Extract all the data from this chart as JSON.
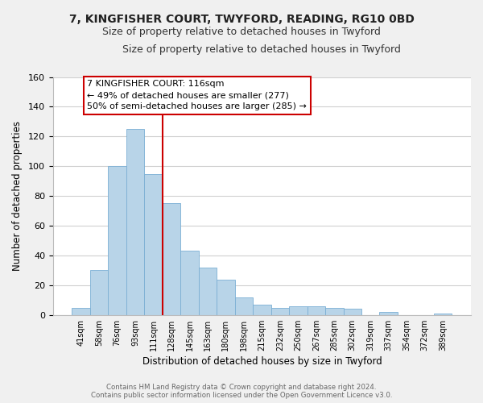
{
  "title_line1": "7, KINGFISHER COURT, TWYFORD, READING, RG10 0BD",
  "title_line2": "Size of property relative to detached houses in Twyford",
  "xlabel": "Distribution of detached houses by size in Twyford",
  "ylabel": "Number of detached properties",
  "bar_labels": [
    "41sqm",
    "58sqm",
    "76sqm",
    "93sqm",
    "111sqm",
    "128sqm",
    "145sqm",
    "163sqm",
    "180sqm",
    "198sqm",
    "215sqm",
    "232sqm",
    "250sqm",
    "267sqm",
    "285sqm",
    "302sqm",
    "319sqm",
    "337sqm",
    "354sqm",
    "372sqm",
    "389sqm"
  ],
  "bar_values": [
    5,
    30,
    100,
    125,
    95,
    75,
    43,
    32,
    24,
    12,
    7,
    5,
    6,
    6,
    5,
    4,
    0,
    2,
    0,
    0,
    1
  ],
  "bar_color": "#b8d4e8",
  "bar_edge_color": "#7bafd4",
  "vline_color": "#cc0000",
  "ylim": [
    0,
    160
  ],
  "yticks": [
    0,
    20,
    40,
    60,
    80,
    100,
    120,
    140,
    160
  ],
  "annotation_text_line1": "7 KINGFISHER COURT: 116sqm",
  "annotation_text_line2": "← 49% of detached houses are smaller (277)",
  "annotation_text_line3": "50% of semi-detached houses are larger (285) →",
  "footer_line1": "Contains HM Land Registry data © Crown copyright and database right 2024.",
  "footer_line2": "Contains public sector information licensed under the Open Government Licence v3.0.",
  "background_color": "#f0f0f0",
  "plot_background_color": "#ffffff",
  "grid_color": "#d0d0d0"
}
